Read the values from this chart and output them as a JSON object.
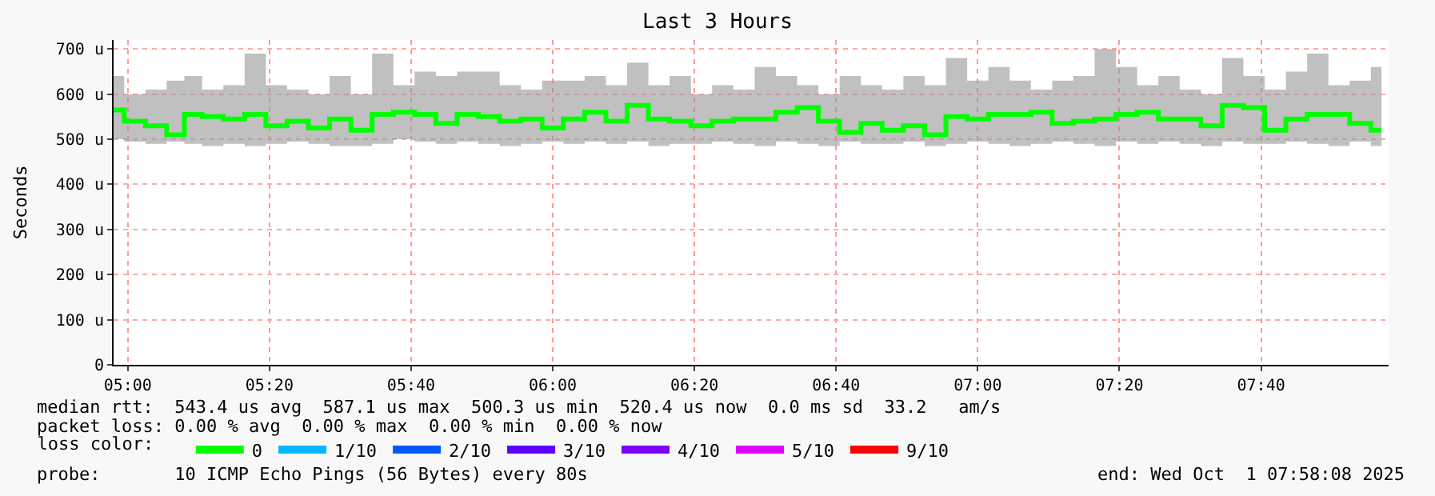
{
  "chart_data": {
    "type": "step",
    "title": "Last 3 Hours",
    "ylabel": "Seconds",
    "legend_title": "loss color:",
    "x": [
      "2025-10-01T04:58",
      "2025-10-01T05:01",
      "2025-10-01T05:04",
      "2025-10-01T05:07",
      "2025-10-01T05:09",
      "2025-10-01T05:12",
      "2025-10-01T05:15",
      "2025-10-01T05:18",
      "2025-10-01T05:21",
      "2025-10-01T05:24",
      "2025-10-01T05:27",
      "2025-10-01T05:30",
      "2025-10-01T05:33",
      "2025-10-01T05:36",
      "2025-10-01T05:39",
      "2025-10-01T05:42",
      "2025-10-01T05:45",
      "2025-10-01T05:48",
      "2025-10-01T05:51",
      "2025-10-01T05:54",
      "2025-10-01T05:57",
      "2025-10-01T06:00",
      "2025-10-01T06:03",
      "2025-10-01T06:06",
      "2025-10-01T06:09",
      "2025-10-01T06:12",
      "2025-10-01T06:15",
      "2025-10-01T06:18",
      "2025-10-01T06:21",
      "2025-10-01T06:24",
      "2025-10-01T06:27",
      "2025-10-01T06:30",
      "2025-10-01T06:33",
      "2025-10-01T06:36",
      "2025-10-01T06:39",
      "2025-10-01T06:42",
      "2025-10-01T06:45",
      "2025-10-01T06:48",
      "2025-10-01T06:51",
      "2025-10-01T06:54",
      "2025-10-01T06:57",
      "2025-10-01T07:00",
      "2025-10-01T07:03",
      "2025-10-01T07:06",
      "2025-10-01T07:09",
      "2025-10-01T07:12",
      "2025-10-01T07:15",
      "2025-10-01T07:18",
      "2025-10-01T07:21",
      "2025-10-01T07:24",
      "2025-10-01T07:27",
      "2025-10-01T07:30",
      "2025-10-01T07:33",
      "2025-10-01T07:36",
      "2025-10-01T07:39",
      "2025-10-01T07:42",
      "2025-10-01T07:45",
      "2025-10-01T07:48",
      "2025-10-01T07:51",
      "2025-10-01T07:54",
      "2025-10-01T07:57"
    ],
    "series": [
      {
        "name": "0",
        "color": "#00ff00",
        "values": [
          565,
          540,
          530,
          510,
          555,
          550,
          545,
          555,
          530,
          540,
          525,
          545,
          520,
          555,
          560,
          555,
          535,
          555,
          550,
          540,
          545,
          525,
          545,
          560,
          540,
          575,
          545,
          540,
          530,
          540,
          545,
          545,
          560,
          570,
          540,
          515,
          535,
          520,
          530,
          510,
          550,
          545,
          555,
          555,
          560,
          535,
          540,
          545,
          555,
          560,
          545,
          545,
          530,
          575,
          570,
          520,
          545,
          555,
          555,
          535,
          520
        ],
        "lower": [
          500,
          495,
          490,
          495,
          490,
          485,
          490,
          485,
          490,
          495,
          490,
          485,
          485,
          490,
          500,
          495,
          490,
          495,
          490,
          485,
          490,
          495,
          490,
          495,
          490,
          495,
          485,
          490,
          490,
          495,
          490,
          485,
          495,
          490,
          485,
          495,
          490,
          490,
          495,
          485,
          490,
          495,
          490,
          485,
          490,
          495,
          490,
          485,
          495,
          490,
          495,
          490,
          485,
          495,
          490,
          490,
          495,
          490,
          485,
          495,
          485
        ],
        "upper": [
          640,
          600,
          610,
          630,
          640,
          610,
          620,
          690,
          620,
          610,
          600,
          640,
          600,
          690,
          620,
          650,
          640,
          650,
          650,
          620,
          610,
          630,
          630,
          640,
          620,
          670,
          620,
          640,
          600,
          620,
          610,
          660,
          640,
          620,
          600,
          640,
          620,
          610,
          640,
          620,
          680,
          630,
          660,
          630,
          610,
          630,
          640,
          700,
          660,
          620,
          640,
          610,
          600,
          680,
          640,
          610,
          650,
          690,
          620,
          630,
          660
        ]
      },
      {
        "name": "1/10",
        "color": "#00b8ff",
        "values": [
          null,
          null,
          null,
          null,
          null,
          null,
          null,
          null,
          null,
          null,
          null,
          null,
          null,
          null,
          null,
          null,
          null,
          null,
          null,
          null,
          null,
          null,
          null,
          null,
          null,
          null,
          null,
          null,
          null,
          null,
          null,
          null,
          null,
          null,
          null,
          null,
          null,
          null,
          null,
          null,
          null,
          null,
          null,
          null,
          null,
          null,
          null,
          null,
          null,
          null,
          null,
          null,
          null,
          null,
          null,
          null,
          null,
          null,
          null,
          null,
          null
        ]
      },
      {
        "name": "2/10",
        "color": "#0059ff",
        "values": [
          null,
          null,
          null,
          null,
          null,
          null,
          null,
          null,
          null,
          null,
          null,
          null,
          null,
          null,
          null,
          null,
          null,
          null,
          null,
          null,
          null,
          null,
          null,
          null,
          null,
          null,
          null,
          null,
          null,
          null,
          null,
          null,
          null,
          null,
          null,
          null,
          null,
          null,
          null,
          null,
          null,
          null,
          null,
          null,
          null,
          null,
          null,
          null,
          null,
          null,
          null,
          null,
          null,
          null,
          null,
          null,
          null,
          null,
          null,
          null,
          null
        ]
      },
      {
        "name": "3/10",
        "color": "#5e00ff",
        "values": [
          null,
          null,
          null,
          null,
          null,
          null,
          null,
          null,
          null,
          null,
          null,
          null,
          null,
          null,
          null,
          null,
          null,
          null,
          null,
          null,
          null,
          null,
          null,
          null,
          null,
          null,
          null,
          null,
          null,
          null,
          null,
          null,
          null,
          null,
          null,
          null,
          null,
          null,
          null,
          null,
          null,
          null,
          null,
          null,
          null,
          null,
          null,
          null,
          null,
          null,
          null,
          null,
          null,
          null,
          null,
          null,
          null,
          null,
          null,
          null,
          null
        ]
      },
      {
        "name": "4/10",
        "color": "#7e00ff",
        "values": [
          null,
          null,
          null,
          null,
          null,
          null,
          null,
          null,
          null,
          null,
          null,
          null,
          null,
          null,
          null,
          null,
          null,
          null,
          null,
          null,
          null,
          null,
          null,
          null,
          null,
          null,
          null,
          null,
          null,
          null,
          null,
          null,
          null,
          null,
          null,
          null,
          null,
          null,
          null,
          null,
          null,
          null,
          null,
          null,
          null,
          null,
          null,
          null,
          null,
          null,
          null,
          null,
          null,
          null,
          null,
          null,
          null,
          null,
          null,
          null,
          null
        ]
      },
      {
        "name": "5/10",
        "color": "#dd00ff",
        "values": [
          null,
          null,
          null,
          null,
          null,
          null,
          null,
          null,
          null,
          null,
          null,
          null,
          null,
          null,
          null,
          null,
          null,
          null,
          null,
          null,
          null,
          null,
          null,
          null,
          null,
          null,
          null,
          null,
          null,
          null,
          null,
          null,
          null,
          null,
          null,
          null,
          null,
          null,
          null,
          null,
          null,
          null,
          null,
          null,
          null,
          null,
          null,
          null,
          null,
          null,
          null,
          null,
          null,
          null,
          null,
          null,
          null,
          null,
          null,
          null,
          null
        ]
      },
      {
        "name": "9/10",
        "color": "#ff0000",
        "values": [
          null,
          null,
          null,
          null,
          null,
          null,
          null,
          null,
          null,
          null,
          null,
          null,
          null,
          null,
          null,
          null,
          null,
          null,
          null,
          null,
          null,
          null,
          null,
          null,
          null,
          null,
          null,
          null,
          null,
          null,
          null,
          null,
          null,
          null,
          null,
          null,
          null,
          null,
          null,
          null,
          null,
          null,
          null,
          null,
          null,
          null,
          null,
          null,
          null,
          null,
          null,
          null,
          null,
          null,
          null,
          null,
          null,
          null,
          null,
          null,
          null
        ]
      }
    ],
    "xlim": [
      "2025-10-01T04:58",
      "2025-10-01T07:58"
    ],
    "xticks": [
      {
        "value": "2025-10-01T05:00",
        "label": "05:00"
      },
      {
        "value": "2025-10-01T05:20",
        "label": "05:20"
      },
      {
        "value": "2025-10-01T05:40",
        "label": "05:40"
      },
      {
        "value": "2025-10-01T06:00",
        "label": "06:00"
      },
      {
        "value": "2025-10-01T06:20",
        "label": "06:20"
      },
      {
        "value": "2025-10-01T06:40",
        "label": "06:40"
      },
      {
        "value": "2025-10-01T07:00",
        "label": "07:00"
      },
      {
        "value": "2025-10-01T07:20",
        "label": "07:20"
      },
      {
        "value": "2025-10-01T07:40",
        "label": "07:40"
      }
    ],
    "ylim": [
      0,
      720
    ],
    "yticks": [
      0,
      {
        "value": 100,
        "label": "100 u"
      },
      {
        "value": 200,
        "label": "200 u"
      },
      {
        "value": 300,
        "label": "300 u"
      },
      {
        "value": 400,
        "label": "400 u"
      },
      {
        "value": 500,
        "label": "500 u"
      },
      {
        "value": 600,
        "label": "600 u"
      },
      {
        "value": 700,
        "label": "700 u"
      }
    ],
    "grid": true,
    "legend": "bottom",
    "line_style": "solid",
    "marker": "none",
    "annotations": [
      "median rtt:  543.4 us avg  587.1 us max  500.3 us min  520.4 us now  0.0 ms sd  33.2   am/s",
      "packet loss: 0.00 % avg  0.00 % max  0.00 % min  0.00 % now",
      "probe:       10 ICMP Echo Pings (56 Bytes) every 80s",
      "end: Wed Oct  1 07:58:08 2025"
    ]
  }
}
